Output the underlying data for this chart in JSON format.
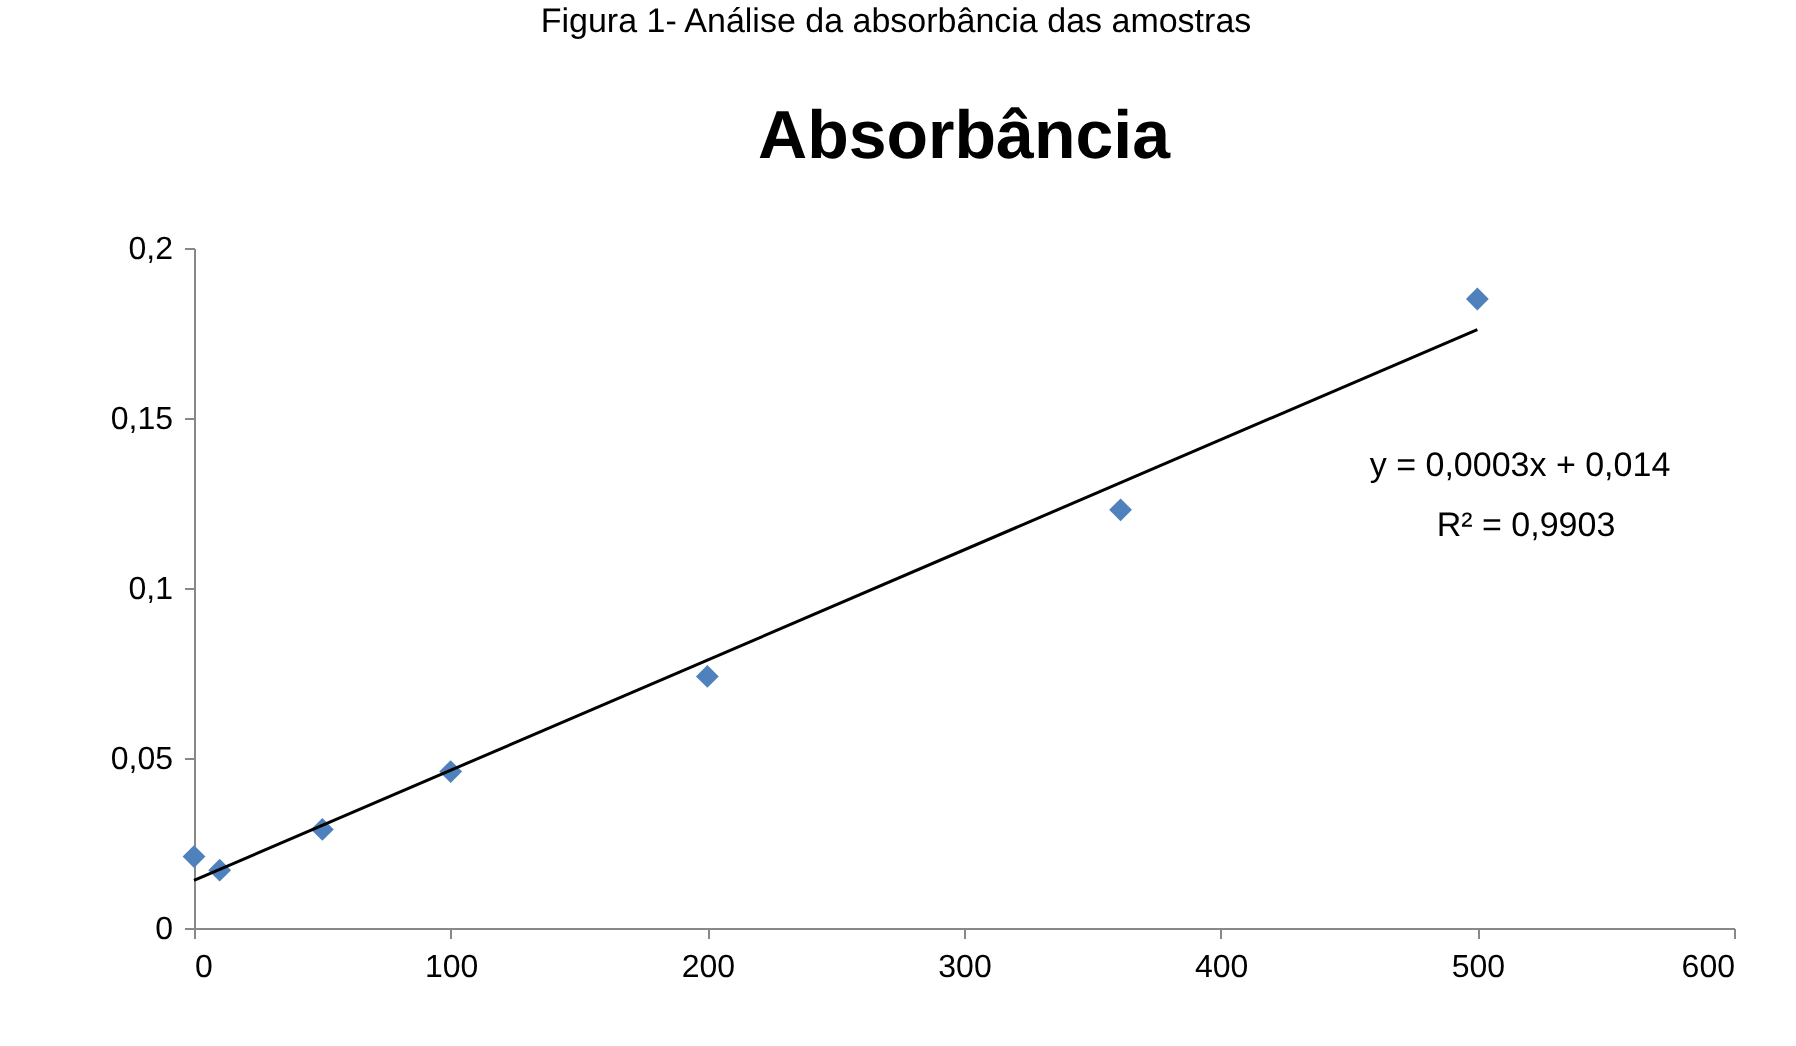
{
  "chart_data": {
    "type": "scatter",
    "title": "Absorbância",
    "annotations": [
      "Figura 1- Análise da absorbância das amostras",
      "y = 0,0003x + 0,014",
      "R² = 0,9903"
    ],
    "series": [
      {
        "color": "#4f81bd",
        "marker": "diamond",
        "x": [
          0,
          10,
          50,
          100,
          200,
          500
        ],
        "values": [
          0.021,
          0.017,
          0.029,
          0.046,
          0.074,
          0.185
        ]
      },
      {
        "color": "#4f81bd",
        "marker": "diamond",
        "x": [
          361
        ],
        "values": [
          0.123
        ]
      },
      {
        "type": "line",
        "color": "#000000",
        "x": [
          0,
          500
        ],
        "values": [
          0.014,
          0.176
        ]
      }
    ],
    "xlim": [
      0,
      600
    ],
    "xticks": [
      0,
      100,
      200,
      300,
      400,
      500,
      600
    ],
    "ylim": [
      0,
      0.2
    ],
    "yticks": [
      0,
      {
        "value": 0.05,
        "label": "0,05"
      },
      {
        "value": 0.1,
        "label": "0,1"
      },
      {
        "value": 0.15,
        "label": "0,15"
      },
      {
        "value": 0.2,
        "label": "0,2"
      }
    ],
    "grid": false
  }
}
